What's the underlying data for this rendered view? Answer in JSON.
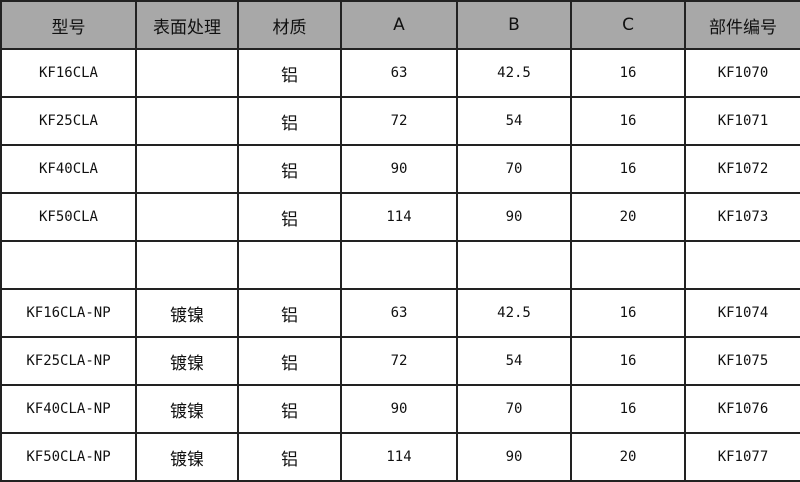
{
  "headers": [
    "型号",
    "表面处理",
    "材质",
    "A",
    "B",
    "C",
    "部件编号"
  ],
  "rows": [
    [
      "KF16CLA",
      "",
      "铝",
      "63",
      "42.5",
      "16",
      "KF1070"
    ],
    [
      "KF25CLA",
      "",
      "铝",
      "72",
      "54",
      "16",
      "KF1071"
    ],
    [
      "KF40CLA",
      "",
      "铝",
      "90",
      "70",
      "16",
      "KF1072"
    ],
    [
      "KF50CLA",
      "",
      "铝",
      "114",
      "90",
      "20",
      "KF1073"
    ],
    [
      "",
      "",
      "",
      "",
      "",
      "",
      ""
    ],
    [
      "KF16CLA-NP",
      "镀镍",
      "铝",
      "63",
      "42.5",
      "16",
      "KF1074"
    ],
    [
      "KF25CLA-NP",
      "镀镍",
      "铝",
      "72",
      "54",
      "16",
      "KF1075"
    ],
    [
      "KF40CLA-NP",
      "镀镍",
      "铝",
      "90",
      "70",
      "16",
      "KF1076"
    ],
    [
      "KF50CLA-NP",
      "镀镍",
      "铝",
      "114",
      "90",
      "20",
      "KF1077"
    ]
  ],
  "colors": {
    "header_bg": "#a8a8a8",
    "border": "#222222"
  }
}
